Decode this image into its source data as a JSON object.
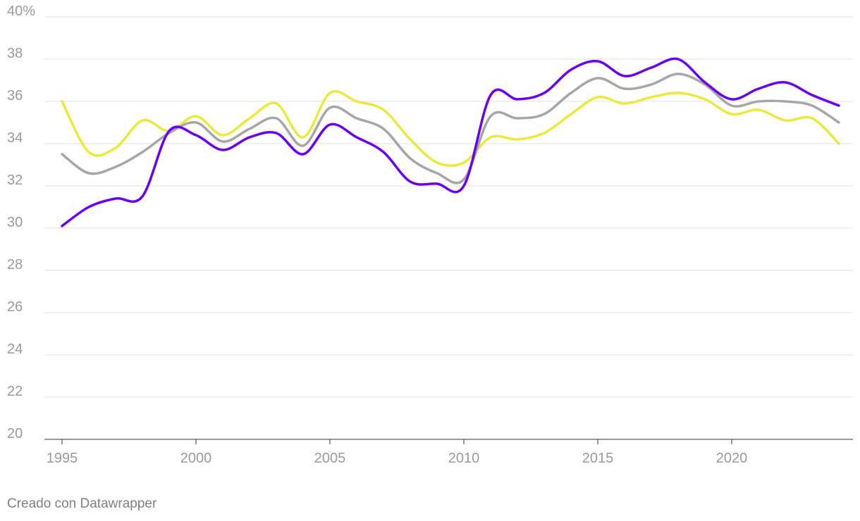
{
  "chart_data": {
    "type": "line",
    "x": [
      1995,
      1996,
      1997,
      1998,
      1999,
      2000,
      2001,
      2002,
      2003,
      2004,
      2005,
      2006,
      2007,
      2008,
      2009,
      2010,
      2011,
      2012,
      2013,
      2014,
      2015,
      2016,
      2017,
      2018,
      2019,
      2020,
      2021,
      2022,
      2023,
      2024
    ],
    "series": [
      {
        "color": "#6a00f4",
        "values": [
          30.1,
          31.0,
          31.4,
          31.5,
          34.6,
          34.4,
          33.7,
          34.3,
          34.5,
          33.5,
          34.9,
          34.3,
          33.6,
          32.2,
          32.1,
          32.0,
          36.3,
          36.1,
          36.4,
          37.5,
          37.9,
          37.2,
          37.6,
          38.0,
          36.9,
          36.1,
          36.6,
          36.9,
          36.3,
          35.8
        ]
      },
      {
        "color": "#a6a6a6",
        "values": [
          33.5,
          32.6,
          32.9,
          33.6,
          34.5,
          35.0,
          34.1,
          34.7,
          35.2,
          33.9,
          35.7,
          35.2,
          34.7,
          33.3,
          32.6,
          32.3,
          35.3,
          35.2,
          35.4,
          36.4,
          37.1,
          36.6,
          36.8,
          37.3,
          36.8,
          35.8,
          36.0,
          36.0,
          35.8,
          35.0
        ]
      },
      {
        "color": "#eaea3c",
        "values": [
          36.0,
          33.6,
          33.8,
          35.1,
          34.6,
          35.3,
          34.4,
          35.2,
          35.9,
          34.3,
          36.4,
          36.0,
          35.6,
          34.2,
          33.1,
          33.1,
          34.3,
          34.2,
          34.5,
          35.4,
          36.2,
          35.9,
          36.2,
          36.4,
          36.1,
          35.4,
          35.6,
          35.1,
          35.2,
          34.0
        ]
      }
    ],
    "yticks": [
      "40%",
      "38",
      "36",
      "34",
      "32",
      "30",
      "28",
      "26",
      "24",
      "22",
      "20"
    ],
    "ytick_values": [
      40,
      38,
      36,
      34,
      32,
      30,
      28,
      26,
      24,
      22,
      20
    ],
    "xticks": [
      "1995",
      "2000",
      "2005",
      "2010",
      "2015",
      "2020"
    ],
    "xtick_values": [
      1995,
      2000,
      2005,
      2010,
      2015,
      2020
    ],
    "xlim": [
      1995,
      2024
    ],
    "ylim": [
      20,
      40
    ],
    "grid": true,
    "legend": "none"
  },
  "footer": {
    "credit": "Creado con Datawrapper"
  }
}
